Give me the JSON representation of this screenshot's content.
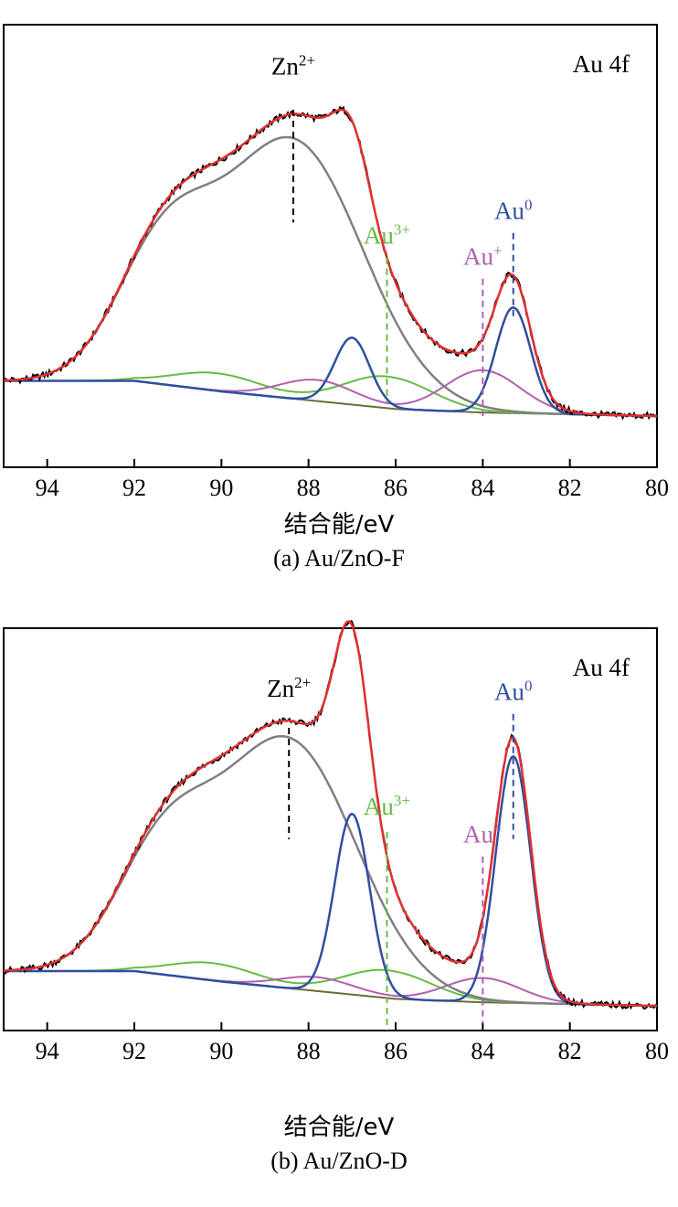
{
  "chart_data": [
    {
      "type": "line",
      "panel": "a",
      "caption": "(a) Au/ZnO-F",
      "xlabel": "结合能/eV",
      "ylabel": "",
      "xlim": [
        95,
        80
      ],
      "ylim": [
        0,
        1
      ],
      "x_ticks": [
        94,
        92,
        90,
        88,
        86,
        84,
        82,
        80
      ],
      "spectrum_label": "Au 4f",
      "colors": {
        "raw": "#000000",
        "fit": "#e03030",
        "zn": "#808080",
        "au0": "#2f4f9f",
        "au_plus": "#b060b0",
        "au3": "#66bb44",
        "bg": "#6b6b3a"
      },
      "background": [
        [
          95,
          0.1
        ],
        [
          92,
          0.1
        ],
        [
          90,
          0.07
        ],
        [
          86,
          0.02
        ],
        [
          84,
          0.01
        ],
        [
          80,
          0.0
        ]
      ],
      "components": {
        "zn": [
          {
            "center": 88.35,
            "amp": 0.73,
            "width": 1.6
          },
          {
            "center": 91.3,
            "amp": 0.36,
            "width": 1.1
          }
        ],
        "au0": [
          {
            "center": 83.3,
            "amp": 0.3,
            "width": 0.4
          },
          {
            "center": 87.0,
            "amp": 0.19,
            "width": 0.4
          }
        ],
        "au_plus": [
          {
            "center": 84.0,
            "amp": 0.12,
            "width": 0.85
          },
          {
            "center": 87.8,
            "amp": 0.06,
            "width": 0.85
          }
        ],
        "au3": [
          {
            "center": 86.2,
            "amp": 0.09,
            "width": 1.0
          },
          {
            "center": 90.1,
            "amp": 0.05,
            "width": 1.0
          }
        ]
      },
      "annotations": [
        {
          "label": "Zn",
          "sup": "2+",
          "x": 88.35,
          "color": "#000000",
          "label_y": 0.97,
          "line_top": 0.87,
          "line_bottom": 0.55
        },
        {
          "label": "Au",
          "sup": "3+",
          "x": 86.2,
          "color": "#66bb44",
          "label_y": 0.49,
          "line_top": 0.45,
          "line_bottom": 0.04
        },
        {
          "label": "Au",
          "sup": "+",
          "x": 84.0,
          "color": "#b060b0",
          "label_y": 0.43,
          "line_top": 0.39,
          "line_bottom": 0.0
        },
        {
          "label": "Au",
          "sup": "0",
          "x": 83.3,
          "color": "#2f4f9f",
          "label_y": 0.56,
          "line_top": 0.52,
          "line_bottom": 0.28
        }
      ]
    },
    {
      "type": "line",
      "panel": "b",
      "caption": "(b) Au/ZnO-D",
      "xlabel": "结合能/eV",
      "ylabel": "",
      "xlim": [
        95,
        80
      ],
      "ylim": [
        0,
        1
      ],
      "x_ticks": [
        94,
        92,
        90,
        88,
        86,
        84,
        82,
        80
      ],
      "spectrum_label": "Au 4f",
      "colors": {
        "raw": "#000000",
        "fit": "#e03030",
        "zn": "#808080",
        "au0": "#2f4f9f",
        "au_plus": "#b060b0",
        "au3": "#66bb44",
        "bg": "#6b6b3a"
      },
      "background": [
        [
          95,
          0.1
        ],
        [
          92,
          0.1
        ],
        [
          90,
          0.07
        ],
        [
          86,
          0.02
        ],
        [
          84,
          0.01
        ],
        [
          80,
          0.0
        ]
      ],
      "components": {
        "zn": [
          {
            "center": 88.45,
            "amp": 0.71,
            "width": 1.55
          },
          {
            "center": 91.3,
            "amp": 0.34,
            "width": 1.1
          }
        ],
        "au0": [
          {
            "center": 83.3,
            "amp": 0.71,
            "width": 0.4
          },
          {
            "center": 87.0,
            "amp": 0.52,
            "width": 0.4
          }
        ],
        "au_plus": [
          {
            "center": 84.0,
            "amp": 0.07,
            "width": 0.85
          },
          {
            "center": 87.8,
            "amp": 0.04,
            "width": 0.85
          }
        ],
        "au3": [
          {
            "center": 86.2,
            "amp": 0.08,
            "width": 1.0
          },
          {
            "center": 90.2,
            "amp": 0.05,
            "width": 1.0
          }
        ]
      },
      "annotations": [
        {
          "label": "Zn",
          "sup": "2+",
          "x": 88.45,
          "color": "#000000",
          "label_y": 0.89,
          "line_top": 0.8,
          "line_bottom": 0.48
        },
        {
          "label": "Au",
          "sup": "3+",
          "x": 86.2,
          "color": "#66bb44",
          "label_y": 0.55,
          "line_top": 0.5,
          "line_bottom": -0.07
        },
        {
          "label": "Au",
          "sup": "+",
          "x": 84.0,
          "color": "#b060b0",
          "label_y": 0.47,
          "line_top": 0.43,
          "line_bottom": -0.05
        },
        {
          "label": "Au",
          "sup": "0",
          "x": 83.3,
          "color": "#2f4f9f",
          "label_y": 0.88,
          "line_top": 0.84,
          "line_bottom": 0.48
        }
      ]
    }
  ]
}
